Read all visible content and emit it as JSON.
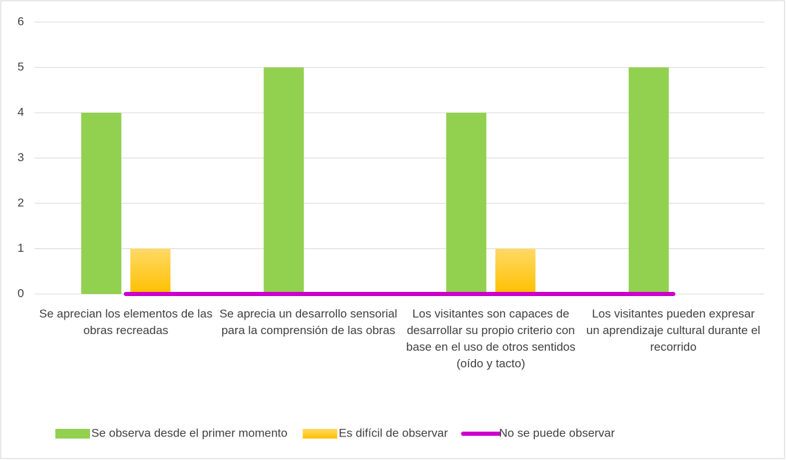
{
  "chart_data": {
    "type": "bar",
    "categories": [
      "Se aprecian los elementos de las obras recreadas",
      "Se aprecia un desarrollo sensorial para la comprensión de las obras",
      "Los visitantes son capaces de desarrollar su propio criterio con base en el uso de otros sentidos (oído y tacto)",
      "Los visitantes pueden expresar un aprendizaje cultural durante el recorrido"
    ],
    "series": [
      {
        "name": "Se observa desde el primer momento",
        "type": "bar",
        "color": "#92d050",
        "values": [
          4,
          5,
          4,
          5
        ]
      },
      {
        "name": "Es difícil de observar",
        "type": "bar",
        "color": "#ffc000",
        "values": [
          1,
          0,
          1,
          0
        ]
      },
      {
        "name": "No se puede observar",
        "type": "line",
        "color": "#cc00cc",
        "values": [
          0,
          0,
          0,
          0
        ]
      }
    ],
    "ylim": [
      0,
      6
    ],
    "yticks": [
      0,
      1,
      2,
      3,
      4,
      5,
      6
    ],
    "grid": true,
    "legend": "bottom"
  }
}
